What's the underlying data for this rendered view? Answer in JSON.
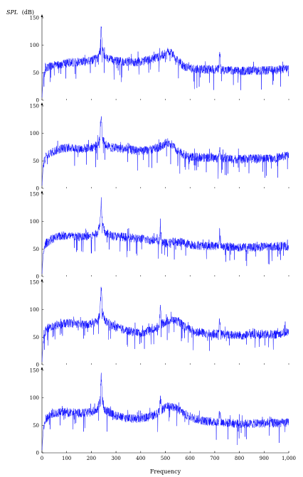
{
  "chart_data": {
    "type": "line",
    "line_color": "#0000ff",
    "ylabel_var": "SPL",
    "ylabel_unit": "(dB)",
    "xlabel": "Frequency",
    "xlim": [
      0,
      1000
    ],
    "ylim": [
      0,
      150
    ],
    "x_ticks": [
      0,
      100,
      200,
      300,
      400,
      500,
      600,
      700,
      800,
      900,
      1000
    ],
    "x_tick_labels": [
      "0",
      "100",
      "200",
      "300",
      "400",
      "500",
      "600",
      "700",
      "800",
      "900",
      "1,000"
    ],
    "y_ticks": [
      0,
      50,
      100,
      150
    ],
    "y_tick_labels": [
      "0",
      "50",
      "100",
      "150"
    ],
    "grid": false,
    "panels": [
      {
        "points": [
          [
            0,
            5
          ],
          [
            5,
            40
          ],
          [
            15,
            58
          ],
          [
            40,
            62
          ],
          [
            80,
            66
          ],
          [
            120,
            69
          ],
          [
            160,
            70
          ],
          [
            200,
            72
          ],
          [
            225,
            76
          ],
          [
            235,
            90
          ],
          [
            240,
            135
          ],
          [
            245,
            92
          ],
          [
            255,
            78
          ],
          [
            280,
            73
          ],
          [
            300,
            72
          ],
          [
            330,
            70
          ],
          [
            360,
            69
          ],
          [
            400,
            70
          ],
          [
            440,
            74
          ],
          [
            480,
            80
          ],
          [
            510,
            88
          ],
          [
            530,
            84
          ],
          [
            555,
            70
          ],
          [
            580,
            60
          ],
          [
            620,
            57
          ],
          [
            660,
            56
          ],
          [
            700,
            56
          ],
          [
            715,
            56
          ],
          [
            720,
            88
          ],
          [
            725,
            56
          ],
          [
            760,
            54
          ],
          [
            800,
            53
          ],
          [
            850,
            54
          ],
          [
            900,
            54
          ],
          [
            950,
            55
          ],
          [
            1000,
            58
          ]
        ]
      },
      {
        "points": [
          [
            0,
            5
          ],
          [
            5,
            42
          ],
          [
            15,
            58
          ],
          [
            40,
            66
          ],
          [
            80,
            73
          ],
          [
            120,
            74
          ],
          [
            160,
            72
          ],
          [
            200,
            74
          ],
          [
            225,
            79
          ],
          [
            235,
            93
          ],
          [
            240,
            135
          ],
          [
            245,
            92
          ],
          [
            255,
            80
          ],
          [
            280,
            74
          ],
          [
            300,
            74
          ],
          [
            330,
            72
          ],
          [
            360,
            70
          ],
          [
            400,
            68
          ],
          [
            440,
            70
          ],
          [
            480,
            76
          ],
          [
            505,
            84
          ],
          [
            520,
            82
          ],
          [
            545,
            70
          ],
          [
            580,
            60
          ],
          [
            620,
            57
          ],
          [
            660,
            56
          ],
          [
            700,
            55
          ],
          [
            715,
            55
          ],
          [
            720,
            78
          ],
          [
            725,
            55
          ],
          [
            760,
            54
          ],
          [
            800,
            53
          ],
          [
            850,
            54
          ],
          [
            900,
            55
          ],
          [
            950,
            56
          ],
          [
            1000,
            60
          ]
        ]
      },
      {
        "points": [
          [
            0,
            5
          ],
          [
            5,
            42
          ],
          [
            15,
            60
          ],
          [
            40,
            68
          ],
          [
            80,
            74
          ],
          [
            120,
            73
          ],
          [
            160,
            72
          ],
          [
            200,
            74
          ],
          [
            225,
            80
          ],
          [
            235,
            95
          ],
          [
            240,
            140
          ],
          [
            245,
            95
          ],
          [
            255,
            80
          ],
          [
            280,
            74
          ],
          [
            300,
            73
          ],
          [
            330,
            72
          ],
          [
            360,
            70
          ],
          [
            400,
            69
          ],
          [
            440,
            66
          ],
          [
            475,
            64
          ],
          [
            480,
            98
          ],
          [
            485,
            62
          ],
          [
            510,
            60
          ],
          [
            540,
            64
          ],
          [
            570,
            62
          ],
          [
            600,
            58
          ],
          [
            650,
            56
          ],
          [
            700,
            56
          ],
          [
            715,
            56
          ],
          [
            720,
            85
          ],
          [
            725,
            56
          ],
          [
            760,
            54
          ],
          [
            800,
            53
          ],
          [
            850,
            53
          ],
          [
            900,
            54
          ],
          [
            950,
            55
          ],
          [
            1000,
            55
          ]
        ]
      },
      {
        "points": [
          [
            0,
            5
          ],
          [
            5,
            42
          ],
          [
            15,
            62
          ],
          [
            40,
            70
          ],
          [
            80,
            74
          ],
          [
            120,
            76
          ],
          [
            160,
            73
          ],
          [
            200,
            75
          ],
          [
            225,
            80
          ],
          [
            235,
            95
          ],
          [
            240,
            140
          ],
          [
            245,
            95
          ],
          [
            255,
            80
          ],
          [
            280,
            73
          ],
          [
            300,
            68
          ],
          [
            330,
            64
          ],
          [
            360,
            60
          ],
          [
            400,
            58
          ],
          [
            440,
            62
          ],
          [
            475,
            70
          ],
          [
            480,
            105
          ],
          [
            485,
            74
          ],
          [
            510,
            80
          ],
          [
            530,
            82
          ],
          [
            555,
            78
          ],
          [
            580,
            68
          ],
          [
            620,
            60
          ],
          [
            660,
            57
          ],
          [
            700,
            56
          ],
          [
            715,
            56
          ],
          [
            720,
            82
          ],
          [
            725,
            56
          ],
          [
            760,
            54
          ],
          [
            800,
            53
          ],
          [
            850,
            54
          ],
          [
            900,
            55
          ],
          [
            950,
            55
          ],
          [
            1000,
            60
          ]
        ]
      },
      {
        "points": [
          [
            0,
            5
          ],
          [
            5,
            40
          ],
          [
            15,
            62
          ],
          [
            40,
            70
          ],
          [
            80,
            74
          ],
          [
            120,
            73
          ],
          [
            160,
            72
          ],
          [
            200,
            74
          ],
          [
            225,
            80
          ],
          [
            235,
            95
          ],
          [
            240,
            140
          ],
          [
            245,
            95
          ],
          [
            255,
            78
          ],
          [
            280,
            72
          ],
          [
            300,
            67
          ],
          [
            330,
            64
          ],
          [
            360,
            62
          ],
          [
            400,
            62
          ],
          [
            440,
            66
          ],
          [
            475,
            74
          ],
          [
            480,
            100
          ],
          [
            485,
            78
          ],
          [
            510,
            84
          ],
          [
            530,
            84
          ],
          [
            555,
            78
          ],
          [
            580,
            70
          ],
          [
            620,
            62
          ],
          [
            660,
            58
          ],
          [
            700,
            56
          ],
          [
            715,
            56
          ],
          [
            720,
            80
          ],
          [
            725,
            56
          ],
          [
            760,
            54
          ],
          [
            800,
            53
          ],
          [
            850,
            53
          ],
          [
            900,
            54
          ],
          [
            950,
            54
          ],
          [
            1000,
            55
          ]
        ]
      }
    ]
  }
}
